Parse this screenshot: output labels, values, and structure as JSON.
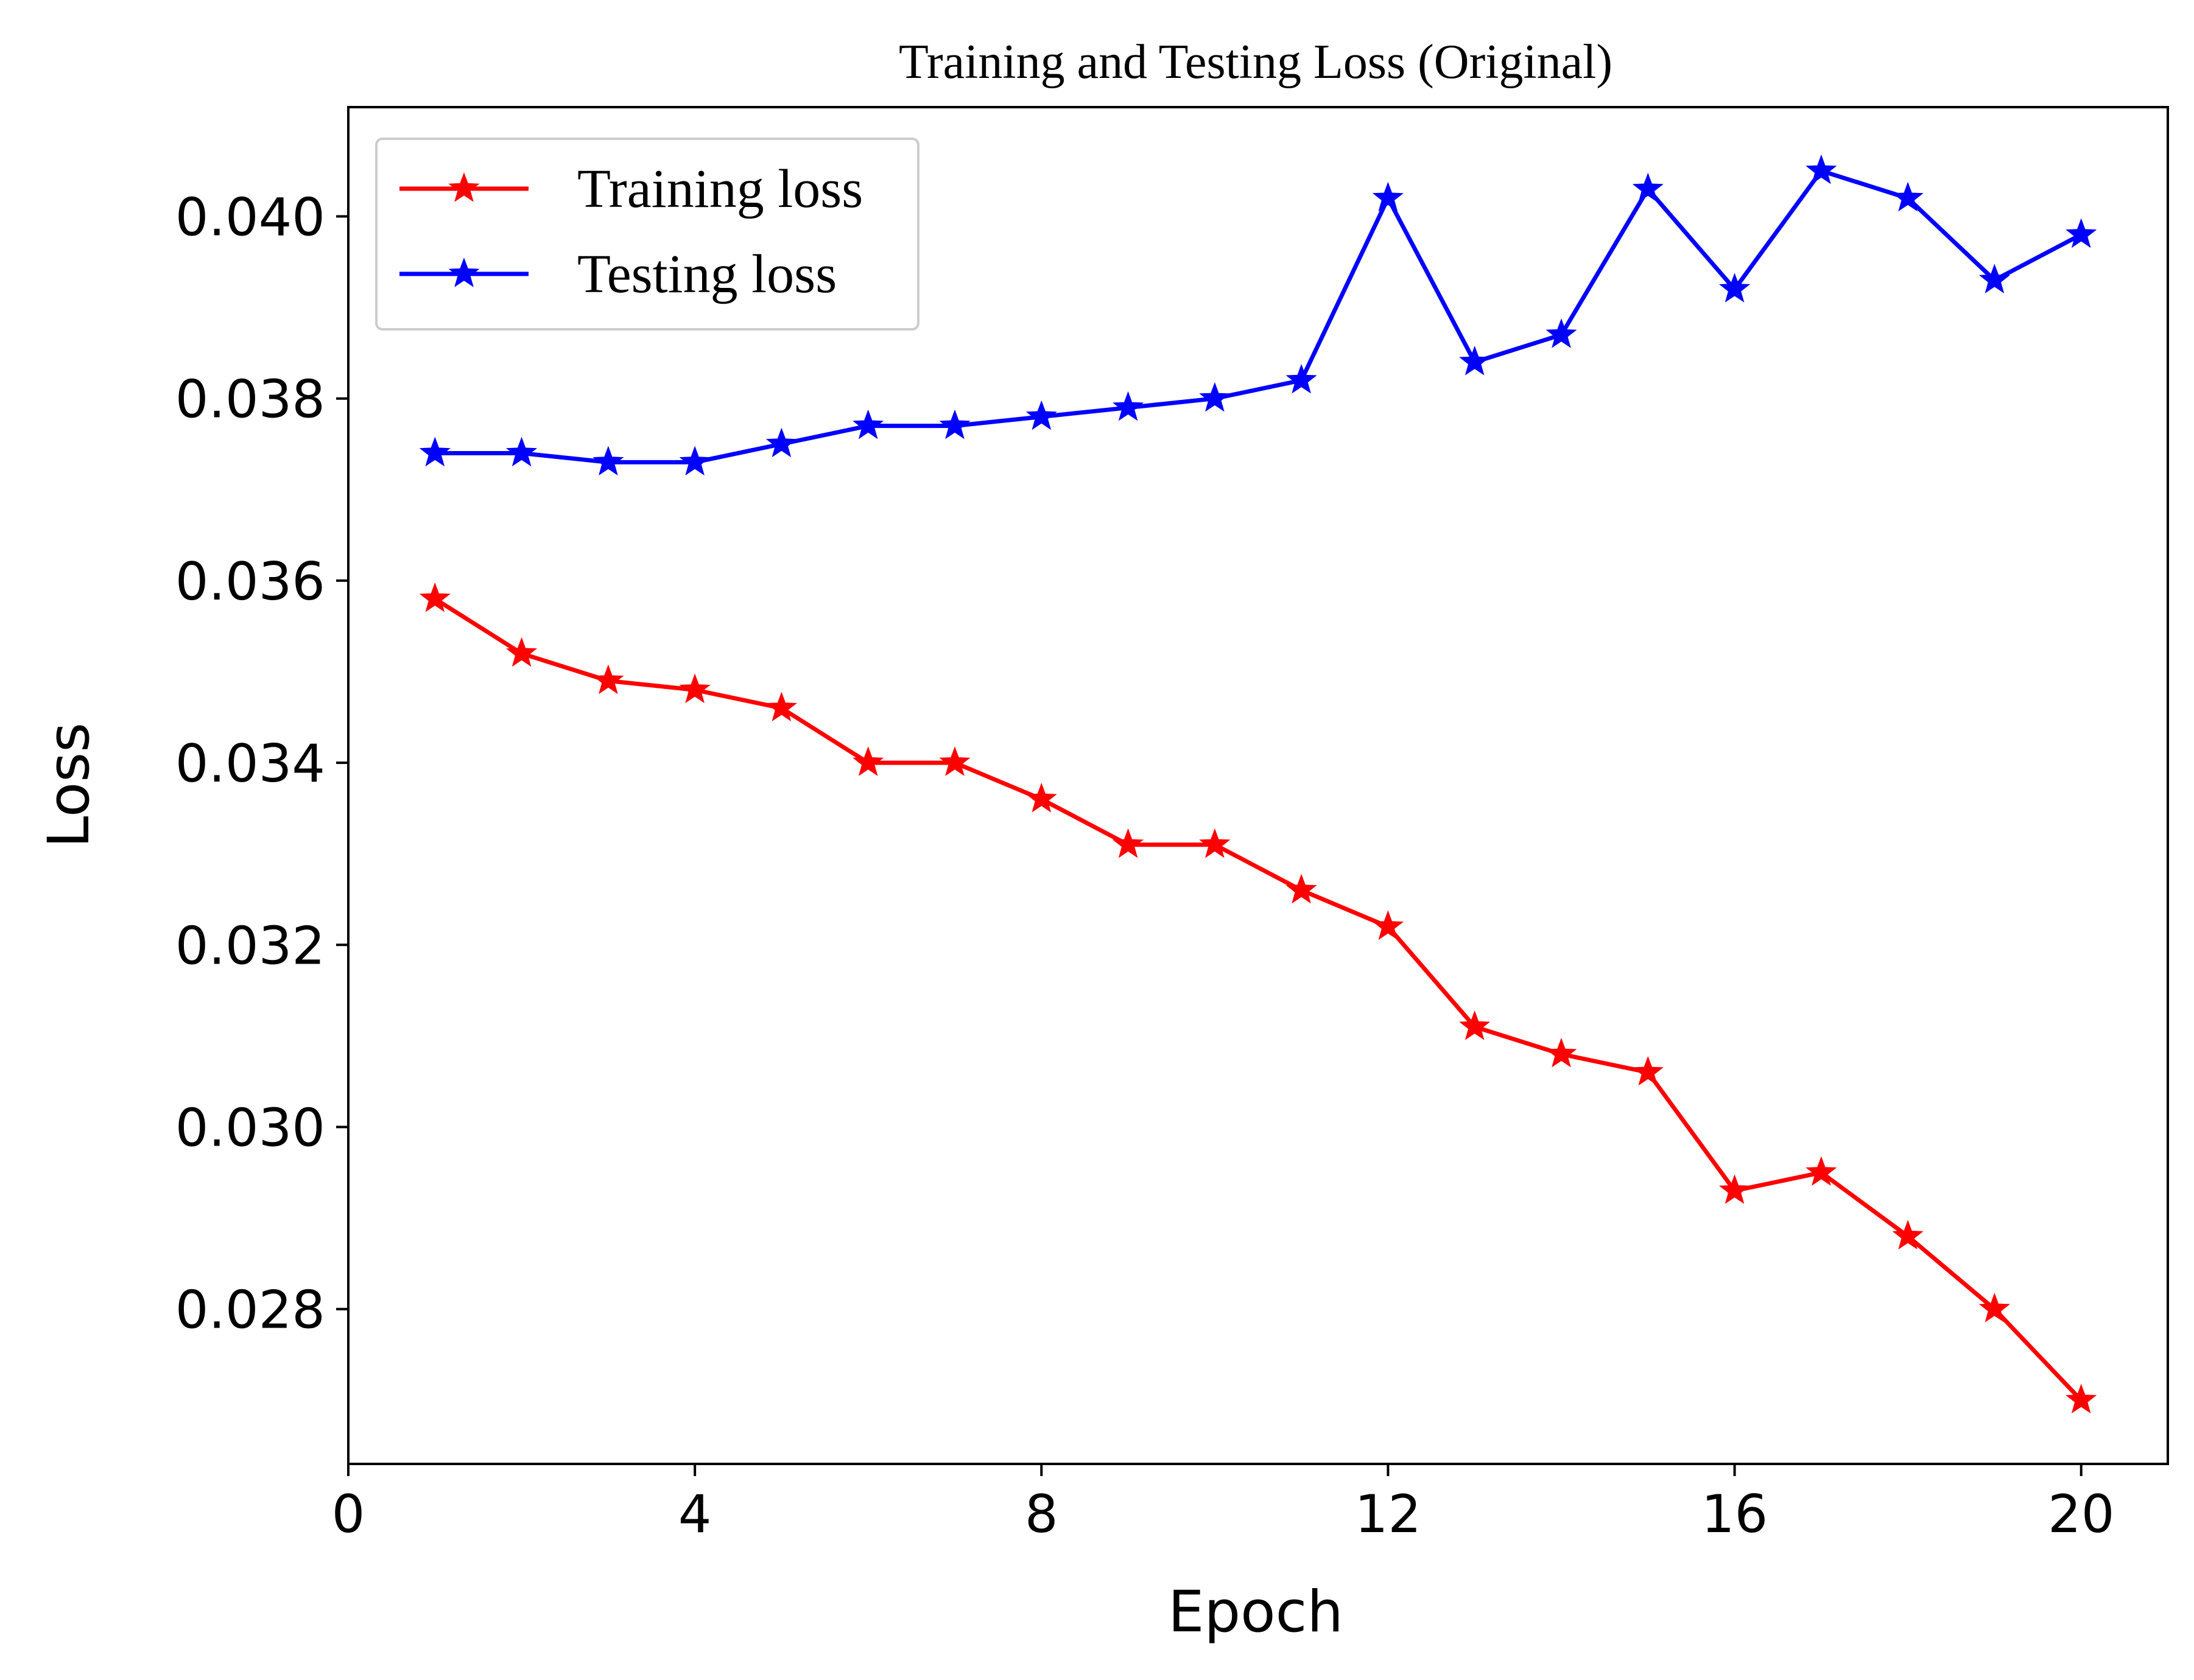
{
  "chart_data": {
    "type": "line",
    "title": "Training and Testing Loss (Original)",
    "xlabel": "Epoch",
    "ylabel": "Loss",
    "xlim": [
      0,
      21
    ],
    "ylim": [
      0.0263,
      0.0412
    ],
    "xticks": [
      0,
      4,
      8,
      12,
      16,
      20
    ],
    "xtick_labels": [
      "0",
      "4",
      "8",
      "12",
      "16",
      "20"
    ],
    "yticks": [
      0.028,
      0.03,
      0.032,
      0.034,
      0.036,
      0.038,
      0.04
    ],
    "ytick_labels": [
      "0.028",
      "0.030",
      "0.032",
      "0.034",
      "0.036",
      "0.038",
      "0.040"
    ],
    "grid": false,
    "legend_position": "top-left",
    "x": [
      1,
      2,
      3,
      4,
      5,
      6,
      7,
      8,
      9,
      10,
      11,
      12,
      13,
      14,
      15,
      16,
      17,
      18,
      19,
      20
    ],
    "series": [
      {
        "name": "Training loss",
        "color": "#ff0000",
        "marker": "star",
        "values": [
          0.0358,
          0.0352,
          0.0349,
          0.0348,
          0.0346,
          0.034,
          0.034,
          0.0336,
          0.0331,
          0.0331,
          0.0326,
          0.0322,
          0.0311,
          0.0308,
          0.0306,
          0.0293,
          0.0295,
          0.0288,
          0.028,
          0.027
        ]
      },
      {
        "name": "Testing loss",
        "color": "#0000ff",
        "marker": "star",
        "values": [
          0.0374,
          0.0374,
          0.0373,
          0.0373,
          0.0375,
          0.0377,
          0.0377,
          0.0378,
          0.0379,
          0.038,
          0.0382,
          0.0402,
          0.0384,
          0.0387,
          0.0403,
          0.0392,
          0.0405,
          0.0402,
          0.0393,
          0.0398
        ]
      }
    ]
  }
}
